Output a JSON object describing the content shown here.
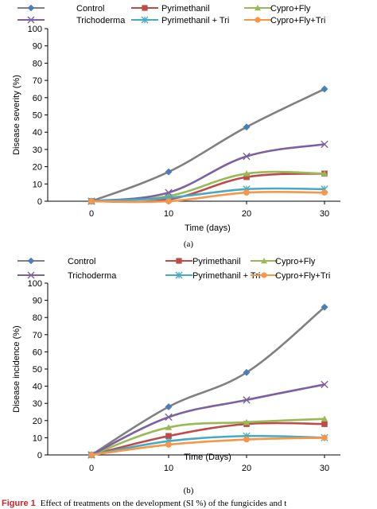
{
  "chart_data": [
    {
      "type": "line",
      "panel_label": "(a)",
      "x": [
        0,
        10,
        20,
        30
      ],
      "xlabel": "Time (days)",
      "ylabel": "Disease severity (%)",
      "ylim": [
        0,
        100
      ],
      "yticks": [
        0,
        10,
        20,
        30,
        40,
        50,
        60,
        70,
        80,
        90,
        100
      ],
      "legend_position": "top",
      "series": [
        {
          "name": "Control",
          "color": "#4a7ebb",
          "line_color": "#808080",
          "marker": "diamond",
          "values": [
            0,
            17,
            43,
            65
          ]
        },
        {
          "name": "Pyrimethanil",
          "color": "#be4b48",
          "line_color": "#be4b48",
          "marker": "square",
          "values": [
            0,
            1,
            14,
            16
          ]
        },
        {
          "name": "Cypro+Fly",
          "color": "#98b954",
          "line_color": "#98b954",
          "marker": "triangle",
          "values": [
            0,
            3,
            16,
            16
          ]
        },
        {
          "name": "Trichoderma",
          "color": "#7d60a0",
          "line_color": "#7d60a0",
          "marker": "x",
          "values": [
            0,
            5,
            26,
            33
          ]
        },
        {
          "name": "Pyrimethanil + Tri",
          "color": "#46aac5",
          "line_color": "#46aac5",
          "marker": "asterisk",
          "values": [
            0,
            2,
            7,
            7
          ]
        },
        {
          "name": "Cypro+Fly+Tri",
          "color": "#f79646",
          "line_color": "#f79646",
          "marker": "circle",
          "values": [
            0,
            0,
            5,
            5
          ]
        }
      ]
    },
    {
      "type": "line",
      "panel_label": "(b)",
      "x": [
        0,
        10,
        20,
        30
      ],
      "xlabel": "Time (Days)",
      "ylabel": "Disease incidence (%)",
      "ylim": [
        0,
        100
      ],
      "yticks": [
        0,
        10,
        20,
        30,
        40,
        50,
        60,
        70,
        80,
        90,
        100
      ],
      "legend_position": "top",
      "series": [
        {
          "name": "Control",
          "color": "#4a7ebb",
          "line_color": "#808080",
          "marker": "diamond",
          "values": [
            0,
            28,
            48,
            86
          ]
        },
        {
          "name": "Pyrimethanil",
          "color": "#be4b48",
          "line_color": "#be4b48",
          "marker": "square",
          "values": [
            0,
            11,
            18,
            18
          ]
        },
        {
          "name": "Cypro+Fly",
          "color": "#98b954",
          "line_color": "#98b954",
          "marker": "triangle",
          "values": [
            0,
            16,
            19,
            21
          ]
        },
        {
          "name": "Trichoderma",
          "color": "#7d60a0",
          "line_color": "#7d60a0",
          "marker": "x",
          "values": [
            0,
            22,
            32,
            41
          ]
        },
        {
          "name": "Pyrimethanil + Tri",
          "color": "#46aac5",
          "line_color": "#46aac5",
          "marker": "asterisk",
          "values": [
            0,
            8,
            11,
            10
          ]
        },
        {
          "name": "Cypro+Fly+Tri",
          "color": "#f79646",
          "line_color": "#f79646",
          "marker": "circle",
          "values": [
            0,
            6,
            9,
            10
          ]
        }
      ]
    }
  ],
  "caption": {
    "lead": "Figure 1",
    "text": "Effect of treatments on the development (SI %) of the fungicides and t"
  }
}
